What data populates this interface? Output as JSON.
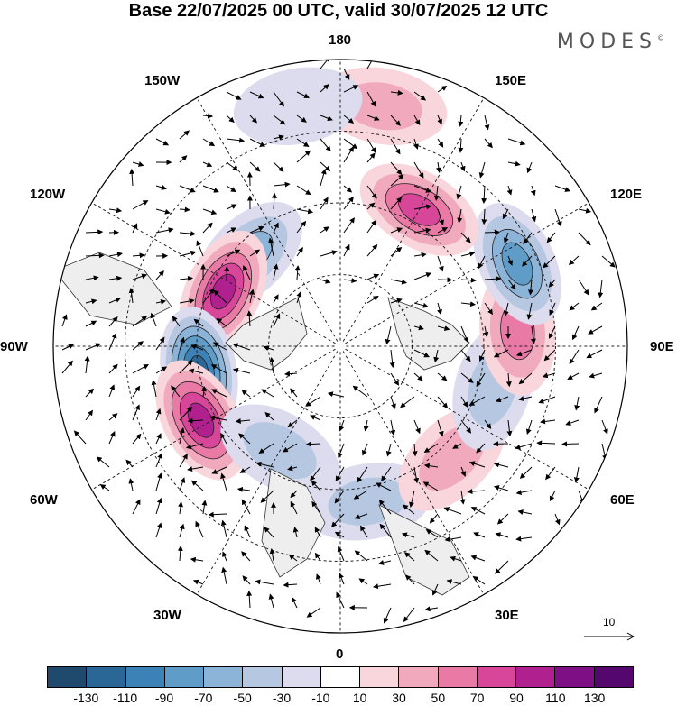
{
  "header": {
    "title": "Base 22/07/2025 00 UTC, valid 30/07/2025 12 UTC",
    "brand": "MODES",
    "brand_mark": "©"
  },
  "longitude_labels": {
    "top": "180",
    "upper_left": "150W",
    "upper_right": "150E",
    "mid_upper_left": "120W",
    "mid_upper_right": "120E",
    "left": "90W",
    "right": "90E",
    "mid_lower_left": "60W",
    "mid_lower_right": "60E",
    "lower_left": "30W",
    "lower_right": "30E",
    "bottom": "0"
  },
  "reference_vector": {
    "label": "10"
  },
  "colorbar": {
    "colors": [
      "#1f4a6e",
      "#2a6796",
      "#3d82b6",
      "#5f9cc8",
      "#8cb3d8",
      "#b6c7e2",
      "#dcdcee",
      "#ffffff",
      "#f8d6dc",
      "#f1aabd",
      "#e97aa6",
      "#d8469a",
      "#b0208e",
      "#7e0f84",
      "#54086e"
    ],
    "labels": [
      "-130",
      "-110",
      "-90",
      "-70",
      "-50",
      "-30",
      "-10",
      "10",
      "30",
      "50",
      "70",
      "90",
      "110",
      "130"
    ]
  },
  "anomalies": [
    {
      "lon": -135,
      "colat": 0.45,
      "value": -60
    },
    {
      "lon": -115,
      "colat": 0.45,
      "value": 100
    },
    {
      "lon": -80,
      "colat": 0.5,
      "value": -120
    },
    {
      "lon": -62,
      "colat": 0.55,
      "value": 100
    },
    {
      "lon": -30,
      "colat": 0.42,
      "value": -40
    },
    {
      "lon": 10,
      "colat": 0.55,
      "value": -30
    },
    {
      "lon": 45,
      "colat": 0.55,
      "value": 30
    },
    {
      "lon": 75,
      "colat": 0.55,
      "value": -40
    },
    {
      "lon": 95,
      "colat": 0.62,
      "value": 50
    },
    {
      "lon": 115,
      "colat": 0.68,
      "value": -80
    },
    {
      "lon": 150,
      "colat": 0.55,
      "value": 80
    },
    {
      "lon": 170,
      "colat": 0.85,
      "value": 30
    },
    {
      "lon": -170,
      "colat": 0.85,
      "value": -20
    }
  ]
}
